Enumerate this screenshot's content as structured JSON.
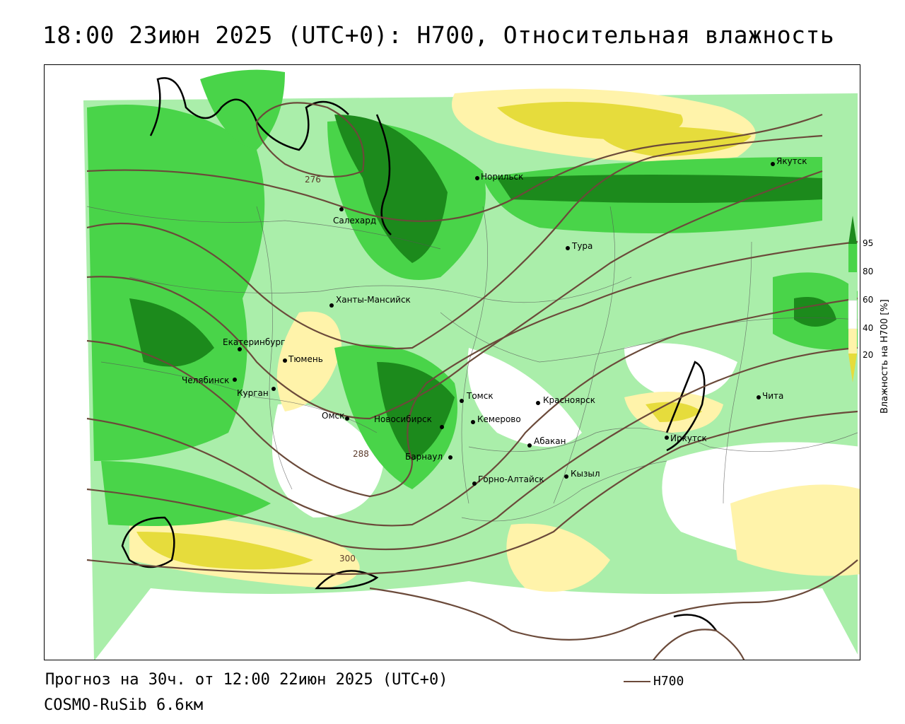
{
  "title": "18:00 23июн 2025 (UTC+0): H700, Относительная влажность",
  "footer": {
    "forecast": "Прогноз на 30ч. от 12:00 22июн 2025 (UTC+0)",
    "model": "COSMO-RuSib 6.6км",
    "contour_legend": "H700"
  },
  "colorbar": {
    "title": "Влажность на H700 [%]",
    "ticks": [
      "95",
      "80",
      "60",
      "40",
      "20"
    ],
    "colors": [
      "#1c8a1c",
      "#49d449",
      "#aaeeaa",
      "#ffffff",
      "#fff3aa",
      "#e6dc3c"
    ]
  },
  "contour_labels": [
    "276",
    "288",
    "300"
  ],
  "cities": [
    {
      "name": "Норильск"
    },
    {
      "name": "Якутск"
    },
    {
      "name": "Салехард"
    },
    {
      "name": "Тура"
    },
    {
      "name": "Ханты-Мансийск"
    },
    {
      "name": "Екатеринбург"
    },
    {
      "name": "Тюмень"
    },
    {
      "name": "Челябинск"
    },
    {
      "name": "Курган"
    },
    {
      "name": "Омск"
    },
    {
      "name": "Новосибирск"
    },
    {
      "name": "Томск"
    },
    {
      "name": "Кемерово"
    },
    {
      "name": "Красноярск"
    },
    {
      "name": "Барнаул"
    },
    {
      "name": "Абакан"
    },
    {
      "name": "Кызыл"
    },
    {
      "name": "Горно-Алтайск"
    },
    {
      "name": "Иркутск"
    },
    {
      "name": "Чита"
    }
  ]
}
